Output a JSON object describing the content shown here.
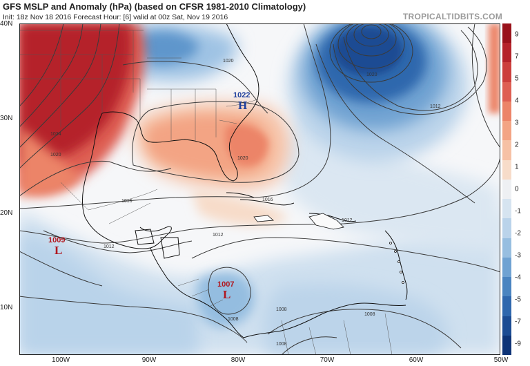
{
  "header": {
    "title": "GFS MSLP and Anomaly (hPa) (based on CFSR 1981-2010 Climatology)",
    "subtitle": "Init: 18z Nov 18 2016   Forecast Hour: [6]   valid at 00z Sat, Nov 19 2016",
    "brand": "TROPICALTIDBITS.COM"
  },
  "axes": {
    "lat_labels": [
      "40N",
      "30N",
      "20N",
      "10N"
    ],
    "lon_labels": [
      "100W",
      "90W",
      "80W",
      "70W",
      "60W",
      "50W"
    ]
  },
  "colorbar": {
    "ticks": [
      "9",
      "7",
      "5",
      "4",
      "3",
      "2",
      "1",
      "0",
      "-1",
      "-2",
      "-3",
      "-4",
      "-5",
      "-7",
      "-9"
    ],
    "colors": [
      "#99121b",
      "#b5232a",
      "#cc3f3c",
      "#de5f53",
      "#ec8468",
      "#f3a484",
      "#f6c1a5",
      "#f7dcc9",
      "#eef0f3",
      "#d6e4f0",
      "#bad3ea",
      "#97bee0",
      "#6fa2d2",
      "#4a84c0",
      "#2f67ad",
      "#1c4c93",
      "#0e3477"
    ]
  },
  "contour_labels": [
    "1020",
    "1020",
    "1024",
    "1020",
    "1016",
    "1016",
    "1012",
    "1012",
    "1012",
    "1008",
    "1008",
    "1008",
    "1008",
    "1012",
    "1020"
  ],
  "systems": [
    {
      "pressure": "1022",
      "letter": "H",
      "color": "#1f3f9c"
    },
    {
      "pressure": "1009",
      "letter": "L",
      "color": "#b0171f"
    },
    {
      "pressure": "1007",
      "letter": "L",
      "color": "#b0171f"
    }
  ]
}
